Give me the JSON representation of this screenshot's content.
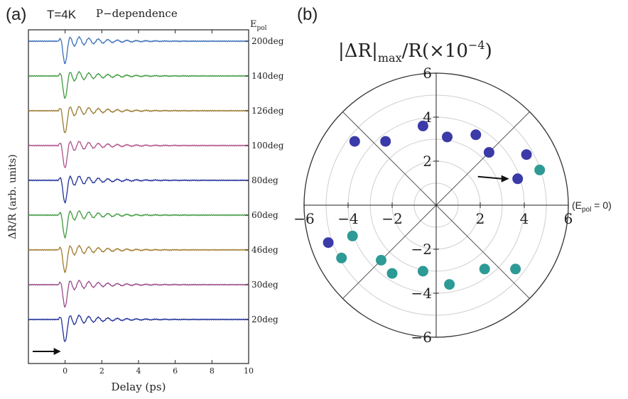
{
  "panel_a": {
    "label": "(a)",
    "temperature": "T=4K",
    "mode": "P−dependence",
    "epol_label": "E",
    "epol_sub": "pol",
    "ylabel": "ΔR/R (arb. units)",
    "xlabel": "Delay (ps)"
  },
  "panel_b": {
    "label": "(b)",
    "title_left": "|ΔR|",
    "title_sub": "max",
    "title_mid": "/R(×10",
    "title_sup": "−4",
    "title_right": ")",
    "epol_annot": "(E",
    "epol_annot_sub": "pol",
    "epol_annot_end": " = 0)"
  },
  "chart_data": [
    {
      "type": "line",
      "xlabel": "Delay (ps)",
      "ylabel": "ΔR/R (arb. units)",
      "xlim": [
        -2,
        10
      ],
      "x_ticks": [
        0,
        2,
        4,
        6,
        8,
        10
      ],
      "series": [
        {
          "name": "200deg",
          "color": "#3a6fb8"
        },
        {
          "name": "140deg",
          "color": "#3f9a3f"
        },
        {
          "name": "126deg",
          "color": "#9a7a30"
        },
        {
          "name": "100deg",
          "color": "#b0508a"
        },
        {
          "name": "80deg",
          "color": "#1f2f9a"
        },
        {
          "name": "60deg",
          "color": "#3f9a3f"
        },
        {
          "name": "46deg",
          "color": "#a07a2a"
        },
        {
          "name": "30deg",
          "color": "#9a4a8a"
        },
        {
          "name": "20deg",
          "color": "#1f2f9a"
        }
      ],
      "arrow_at_delay": 0
    },
    {
      "type": "scatter",
      "coordinate_system": "polar",
      "title": "|ΔR|max/R(×10−4)",
      "rlim": [
        0,
        6
      ],
      "axis_ticks": [
        -6,
        -4,
        -2,
        2,
        4,
        6
      ],
      "radial_grid": [
        1,
        2,
        3,
        4,
        5,
        6
      ],
      "series": [
        {
          "name": "",
          "color": "#3a3aa8",
          "points": [
            {
              "x": -3.7,
              "y": 2.9
            },
            {
              "x": -2.3,
              "y": 2.9
            },
            {
              "x": -0.6,
              "y": 3.6
            },
            {
              "x": 0.5,
              "y": 3.1
            },
            {
              "x": 1.8,
              "y": 3.2
            },
            {
              "x": 2.4,
              "y": 2.4
            },
            {
              "x": 4.1,
              "y": 2.3
            },
            {
              "x": 3.7,
              "y": 1.2
            },
            {
              "x": -4.9,
              "y": -1.7
            }
          ]
        },
        {
          "name": "",
          "color": "#2e9a96",
          "points": [
            {
              "x": 4.7,
              "y": 1.6
            },
            {
              "x": -3.8,
              "y": -1.4
            },
            {
              "x": -4.3,
              "y": -2.4
            },
            {
              "x": -2.5,
              "y": -2.5
            },
            {
              "x": -2.0,
              "y": -3.1
            },
            {
              "x": -0.6,
              "y": -3.0
            },
            {
              "x": 0.6,
              "y": -3.6
            },
            {
              "x": 2.2,
              "y": -2.9
            },
            {
              "x": 3.6,
              "y": -2.9
            }
          ]
        }
      ],
      "arrow_to_point": {
        "x": 3.7,
        "y": 1.2
      }
    }
  ]
}
